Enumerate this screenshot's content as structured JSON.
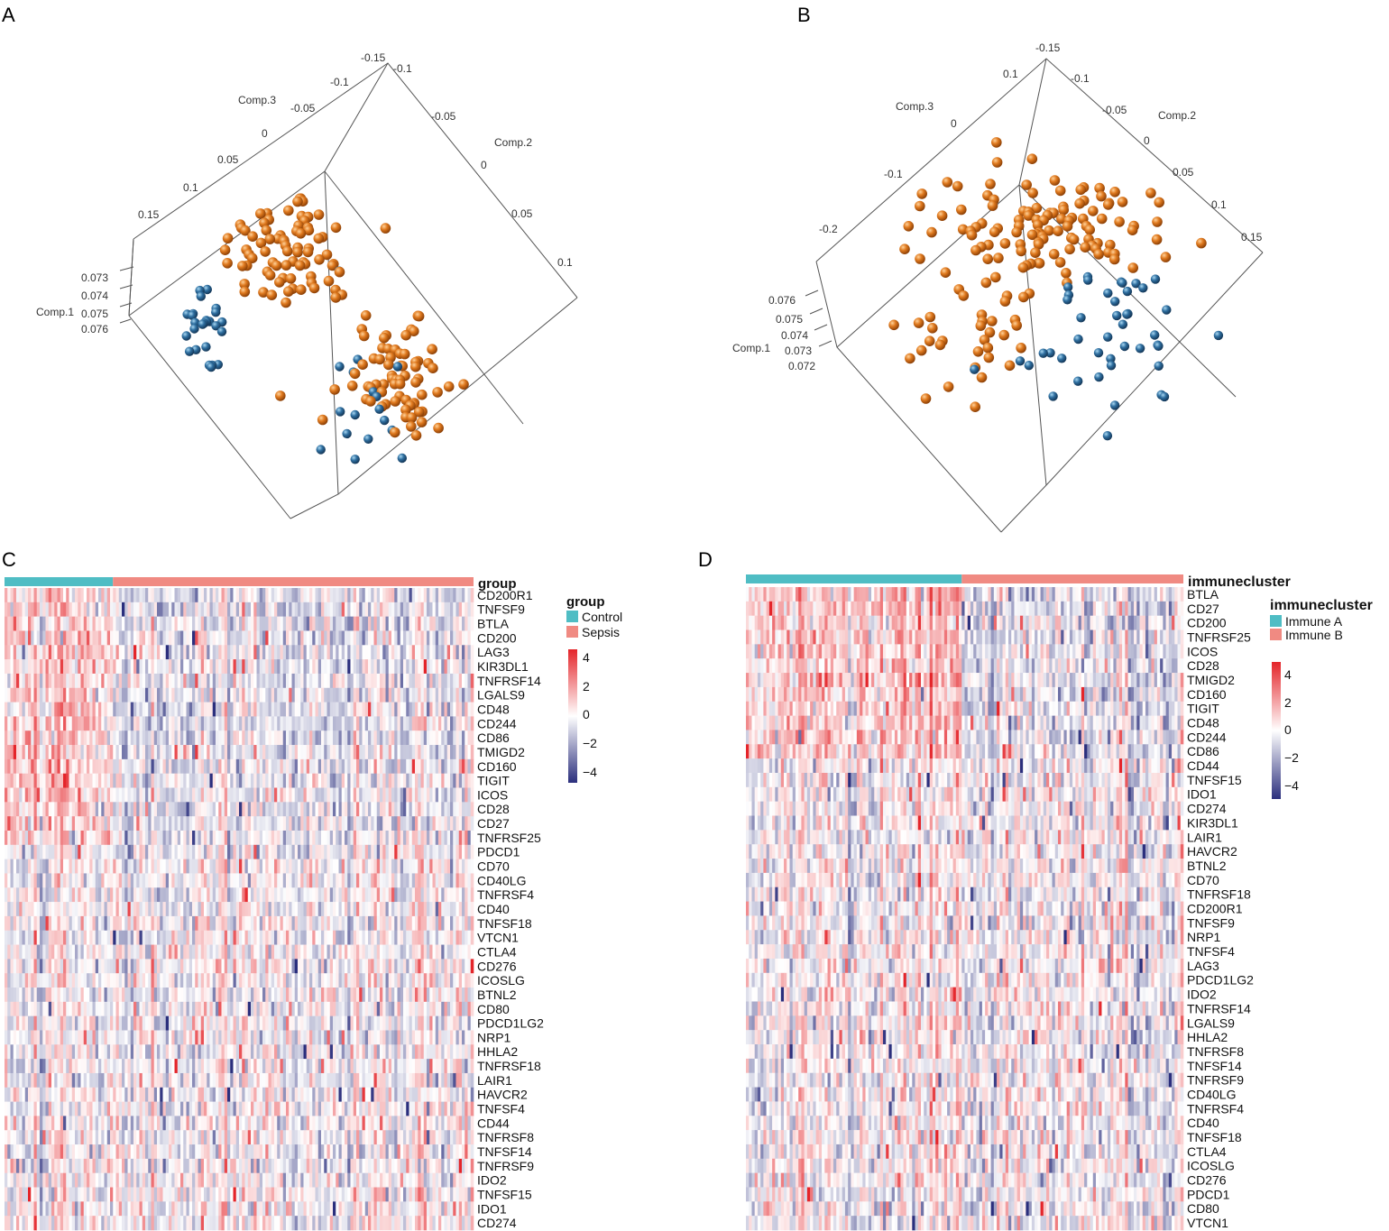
{
  "panel_labels": [
    "A",
    "B",
    "C",
    "D"
  ],
  "colors": {
    "group_a": "#4FBDC4",
    "group_b": "#F08A82",
    "sphere_orange": "#E07A1F",
    "sphere_blue": "#2F6FA0",
    "heat_low": "#2B2F7D",
    "heat_mid": "#FFFFFF",
    "heat_high": "#E4252A"
  },
  "chart_data": [
    {
      "type": "scatter3d",
      "panel": "A",
      "axes": {
        "comp3": {
          "label": "Comp.3",
          "ticks": [
            "-0.15",
            "-0.1",
            "-0.05",
            "0",
            "0.05",
            "0.1",
            "0.15"
          ]
        },
        "comp2": {
          "label": "Comp.2",
          "ticks": [
            "-0.1",
            "-0.05",
            "0",
            "0.05",
            "0.1"
          ]
        },
        "comp1": {
          "label": "Comp.1",
          "ticks": [
            "0.073",
            "0.074",
            "0.075",
            "0.076"
          ]
        }
      },
      "series": [
        {
          "name": "Sepsis",
          "color": "#E07A1F",
          "count": 150
        },
        {
          "name": "Control",
          "color": "#2F6FA0",
          "count": 44
        }
      ]
    },
    {
      "type": "scatter3d",
      "panel": "B",
      "axes": {
        "comp3": {
          "label": "Comp.3",
          "ticks": [
            "0.1",
            "0",
            "-0.1",
            "-0.2"
          ]
        },
        "comp2": {
          "label": "Comp.2",
          "ticks": [
            "-0.15",
            "-0.1",
            "-0.05",
            "0",
            "0.05",
            "0.1",
            "0.15"
          ]
        },
        "comp1": {
          "label": "Comp.1",
          "ticks": [
            "0.076",
            "0.075",
            "0.074",
            "0.073",
            "0.072"
          ]
        }
      },
      "series": [
        {
          "name": "Immune B",
          "color": "#E07A1F",
          "count": 150
        },
        {
          "name": "Immune A",
          "color": "#2F6FA0",
          "count": 44
        }
      ]
    },
    {
      "type": "heatmap",
      "panel": "C",
      "annotation_title": "group",
      "legend_title": "group",
      "groups": [
        {
          "name": "Control",
          "color": "#4FBDC4",
          "fraction": 0.23
        },
        {
          "name": "Sepsis",
          "color": "#F08A82",
          "fraction": 0.77
        }
      ],
      "color_scale": {
        "min": -4,
        "max": 4,
        "ticks": [
          "4",
          "2",
          "0",
          "−2",
          "−4"
        ]
      },
      "columns": 160,
      "rows": [
        "CD200R1",
        "TNFSF9",
        "BTLA",
        "CD200",
        "LAG3",
        "KIR3DL1",
        "TNFRSF14",
        "LGALS9",
        "CD48",
        "CD244",
        "CD86",
        "TMIGD2",
        "CD160",
        "TIGIT",
        "ICOS",
        "CD28",
        "CD27",
        "TNFRSF25",
        "PDCD1",
        "CD70",
        "CD40LG",
        "TNFRSF4",
        "CD40",
        "TNFSF18",
        "VTCN1",
        "CTLA4",
        "CD276",
        "ICOSLG",
        "BTNL2",
        "CD80",
        "PDCD1LG2",
        "NRP1",
        "HHLA2",
        "TNFRSF18",
        "LAIR1",
        "HAVCR2",
        "TNFSF4",
        "CD44",
        "TNFRSF8",
        "TNFSF14",
        "TNFRSF9",
        "IDO2",
        "TNFSF15",
        "IDO1",
        "CD274"
      ]
    },
    {
      "type": "heatmap",
      "panel": "D",
      "annotation_title": "immunecluster",
      "legend_title": "immunecluster",
      "groups": [
        {
          "name": "Immune A",
          "color": "#4FBDC4",
          "fraction": 0.49
        },
        {
          "name": "Immune B",
          "color": "#F08A82",
          "fraction": 0.51
        }
      ],
      "color_scale": {
        "min": -4,
        "max": 4,
        "ticks": [
          "4",
          "2",
          "0",
          "−2",
          "−4"
        ]
      },
      "columns": 150,
      "rows": [
        "BTLA",
        "CD27",
        "CD200",
        "TNFRSF25",
        "ICOS",
        "CD28",
        "TMIGD2",
        "CD160",
        "TIGIT",
        "CD48",
        "CD244",
        "CD86",
        "CD44",
        "TNFSF15",
        "IDO1",
        "CD274",
        "KIR3DL1",
        "LAIR1",
        "HAVCR2",
        "BTNL2",
        "CD70",
        "TNFRSF18",
        "CD200R1",
        "TNFSF9",
        "NRP1",
        "TNFSF4",
        "LAG3",
        "PDCD1LG2",
        "IDO2",
        "TNFRSF14",
        "LGALS9",
        "HHLA2",
        "TNFRSF8",
        "TNFSF14",
        "TNFRSF9",
        "CD40LG",
        "TNFRSF4",
        "CD40",
        "TNFSF18",
        "CTLA4",
        "ICOSLG",
        "CD276",
        "PDCD1",
        "CD80",
        "VTCN1"
      ]
    }
  ]
}
